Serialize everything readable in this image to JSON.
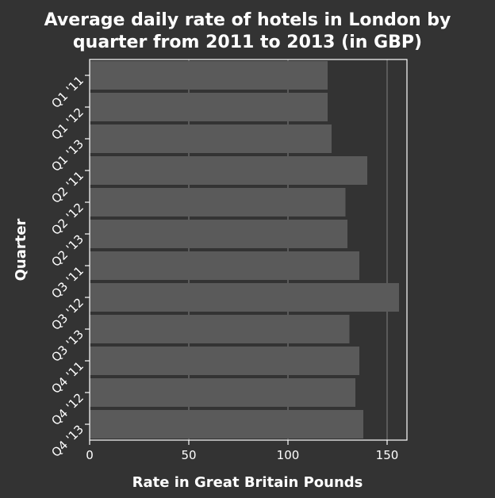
{
  "chart_data": {
    "type": "bar",
    "orientation": "horizontal",
    "title_lines": [
      "Average daily rate of hotels in London by",
      "quarter from 2011 to 2013 (in GBP)"
    ],
    "xlabel": "Rate in Great Britain Pounds",
    "ylabel": "Quarter",
    "categories": [
      "Q1 '11",
      "Q1 '12",
      "Q1 '13",
      "Q2 '11",
      "Q2 '12",
      "Q2 '13",
      "Q3 '11",
      "Q3 '12",
      "Q3 '13",
      "Q4 '11",
      "Q4 '12",
      "Q4 '13"
    ],
    "values": [
      120,
      120,
      122,
      140,
      129,
      130,
      136,
      156,
      131,
      136,
      134,
      138
    ],
    "xlim": [
      0,
      160
    ],
    "xticks": [
      0,
      50,
      100,
      150
    ],
    "xtick_labels": [
      "0",
      "50",
      "100",
      "150"
    ],
    "grid": true,
    "legend": "none",
    "colors": {
      "background": "#333333",
      "bar": "#5a5a5a",
      "grid": "#808080",
      "text": "#ffffff"
    }
  }
}
